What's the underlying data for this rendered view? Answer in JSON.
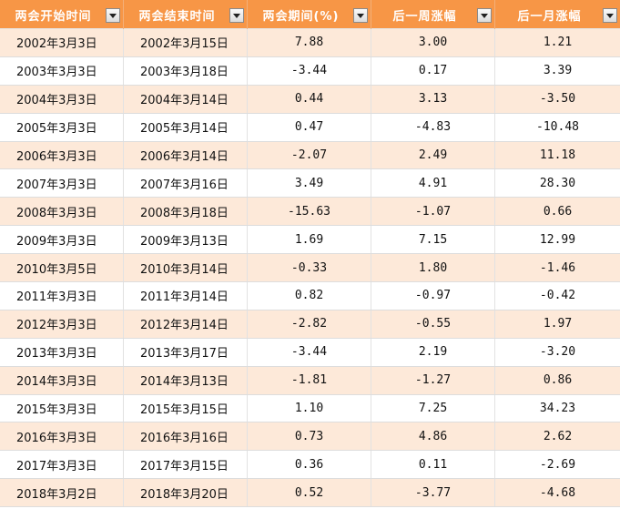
{
  "headers": [
    {
      "label": "两会开始时间"
    },
    {
      "label": "两会结束时间"
    },
    {
      "label": "两会期间(%)"
    },
    {
      "label": "后一周涨幅"
    },
    {
      "label": "后一月涨幅"
    }
  ],
  "rows": [
    [
      "2002年3月3日",
      "2002年3月15日",
      "7.88",
      "3.00",
      "1.21"
    ],
    [
      "2003年3月3日",
      "2003年3月18日",
      "-3.44",
      "0.17",
      "3.39"
    ],
    [
      "2004年3月3日",
      "2004年3月14日",
      "0.44",
      "3.13",
      "-3.50"
    ],
    [
      "2005年3月3日",
      "2005年3月14日",
      "0.47",
      "-4.83",
      "-10.48"
    ],
    [
      "2006年3月3日",
      "2006年3月14日",
      "-2.07",
      "2.49",
      "11.18"
    ],
    [
      "2007年3月3日",
      "2007年3月16日",
      "3.49",
      "4.91",
      "28.30"
    ],
    [
      "2008年3月3日",
      "2008年3月18日",
      "-15.63",
      "-1.07",
      "0.66"
    ],
    [
      "2009年3月3日",
      "2009年3月13日",
      "1.69",
      "7.15",
      "12.99"
    ],
    [
      "2010年3月5日",
      "2010年3月14日",
      "-0.33",
      "1.80",
      "-1.46"
    ],
    [
      "2011年3月3日",
      "2011年3月14日",
      "0.82",
      "-0.97",
      "-0.42"
    ],
    [
      "2012年3月3日",
      "2012年3月14日",
      "-2.82",
      "-0.55",
      "1.97"
    ],
    [
      "2013年3月3日",
      "2013年3月17日",
      "-3.44",
      "2.19",
      "-3.20"
    ],
    [
      "2014年3月3日",
      "2014年3月13日",
      "-1.81",
      "-1.27",
      "0.86"
    ],
    [
      "2015年3月3日",
      "2015年3月15日",
      "1.10",
      "7.25",
      "34.23"
    ],
    [
      "2016年3月3日",
      "2016年3月16日",
      "0.73",
      "4.86",
      "2.62"
    ],
    [
      "2017年3月3日",
      "2017年3月15日",
      "0.36",
      "0.11",
      "-2.69"
    ],
    [
      "2018年3月2日",
      "2018年3月20日",
      "0.52",
      "-3.77",
      "-4.68"
    ]
  ],
  "colors": {
    "header_bg": "#f79646",
    "header_text": "#ffffff",
    "band_odd": "#fde9d9",
    "band_even": "#ffffff"
  },
  "icons": {
    "filter": "chevron-down-icon"
  }
}
